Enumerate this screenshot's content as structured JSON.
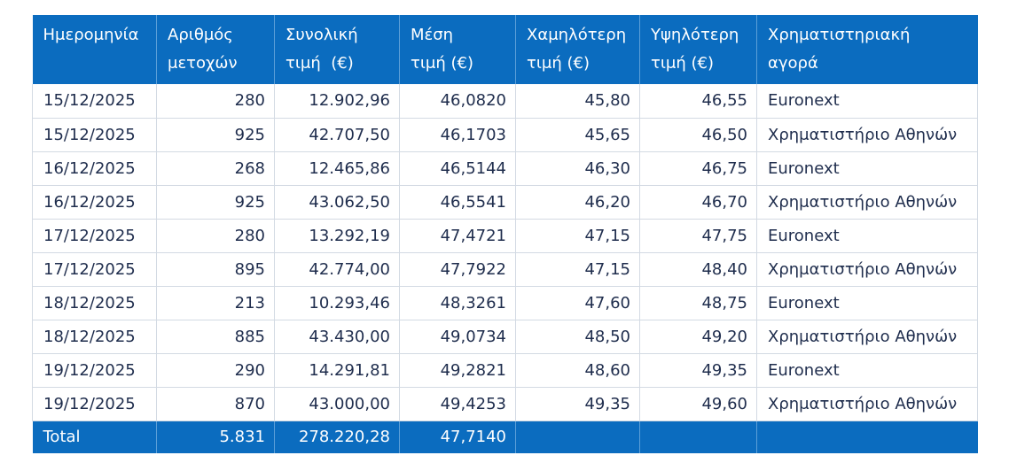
{
  "table": {
    "headers": [
      [
        "Ημερομηνία"
      ],
      [
        "Αριθμός",
        "μετοχών"
      ],
      [
        "Συνολική",
        "τιμή  (€)"
      ],
      [
        "Μέση",
        "τιμή (€)"
      ],
      [
        "Χαμηλότερη",
        "τιμή (€)"
      ],
      [
        "Υψηλότερη",
        "τιμή (€)"
      ],
      [
        "Χρηματιστηριακή",
        "αγορά"
      ]
    ],
    "rows": [
      [
        "15/12/2025",
        "280",
        "12.902,96",
        "46,0820",
        "45,80",
        "46,55",
        "Euronext"
      ],
      [
        "15/12/2025",
        "925",
        "42.707,50",
        "46,1703",
        "45,65",
        "46,50",
        "Χρηματιστήριο Αθηνών"
      ],
      [
        "16/12/2025",
        "268",
        "12.465,86",
        "46,5144",
        "46,30",
        "46,75",
        "Euronext"
      ],
      [
        "16/12/2025",
        "925",
        "43.062,50",
        "46,5541",
        "46,20",
        "46,70",
        "Χρηματιστήριο Αθηνών"
      ],
      [
        "17/12/2025",
        "280",
        "13.292,19",
        "47,4721",
        "47,15",
        "47,75",
        "Euronext"
      ],
      [
        "17/12/2025",
        "895",
        "42.774,00",
        "47,7922",
        "47,15",
        "48,40",
        "Χρηματιστήριο Αθηνών"
      ],
      [
        "18/12/2025",
        "213",
        "10.293,46",
        "48,3261",
        "47,60",
        "48,75",
        "Euronext"
      ],
      [
        "18/12/2025",
        "885",
        "43.430,00",
        "49,0734",
        "48,50",
        "49,20",
        "Χρηματιστήριο Αθηνών"
      ],
      [
        "19/12/2025",
        "290",
        "14.291,81",
        "49,2821",
        "48,60",
        "49,35",
        "Euronext"
      ],
      [
        "19/12/2025",
        "870",
        "43.000,00",
        "49,4253",
        "49,35",
        "49,60",
        "Χρηματιστήριο Αθηνών"
      ]
    ],
    "total": [
      "Total",
      "5.831",
      "278.220,28",
      "47,7140",
      "",
      "",
      ""
    ]
  },
  "colors": {
    "header_bg": "#0b6cbf",
    "header_text": "#ffffff",
    "body_text": "#1f2d4d",
    "grid": "#d3dae3"
  }
}
